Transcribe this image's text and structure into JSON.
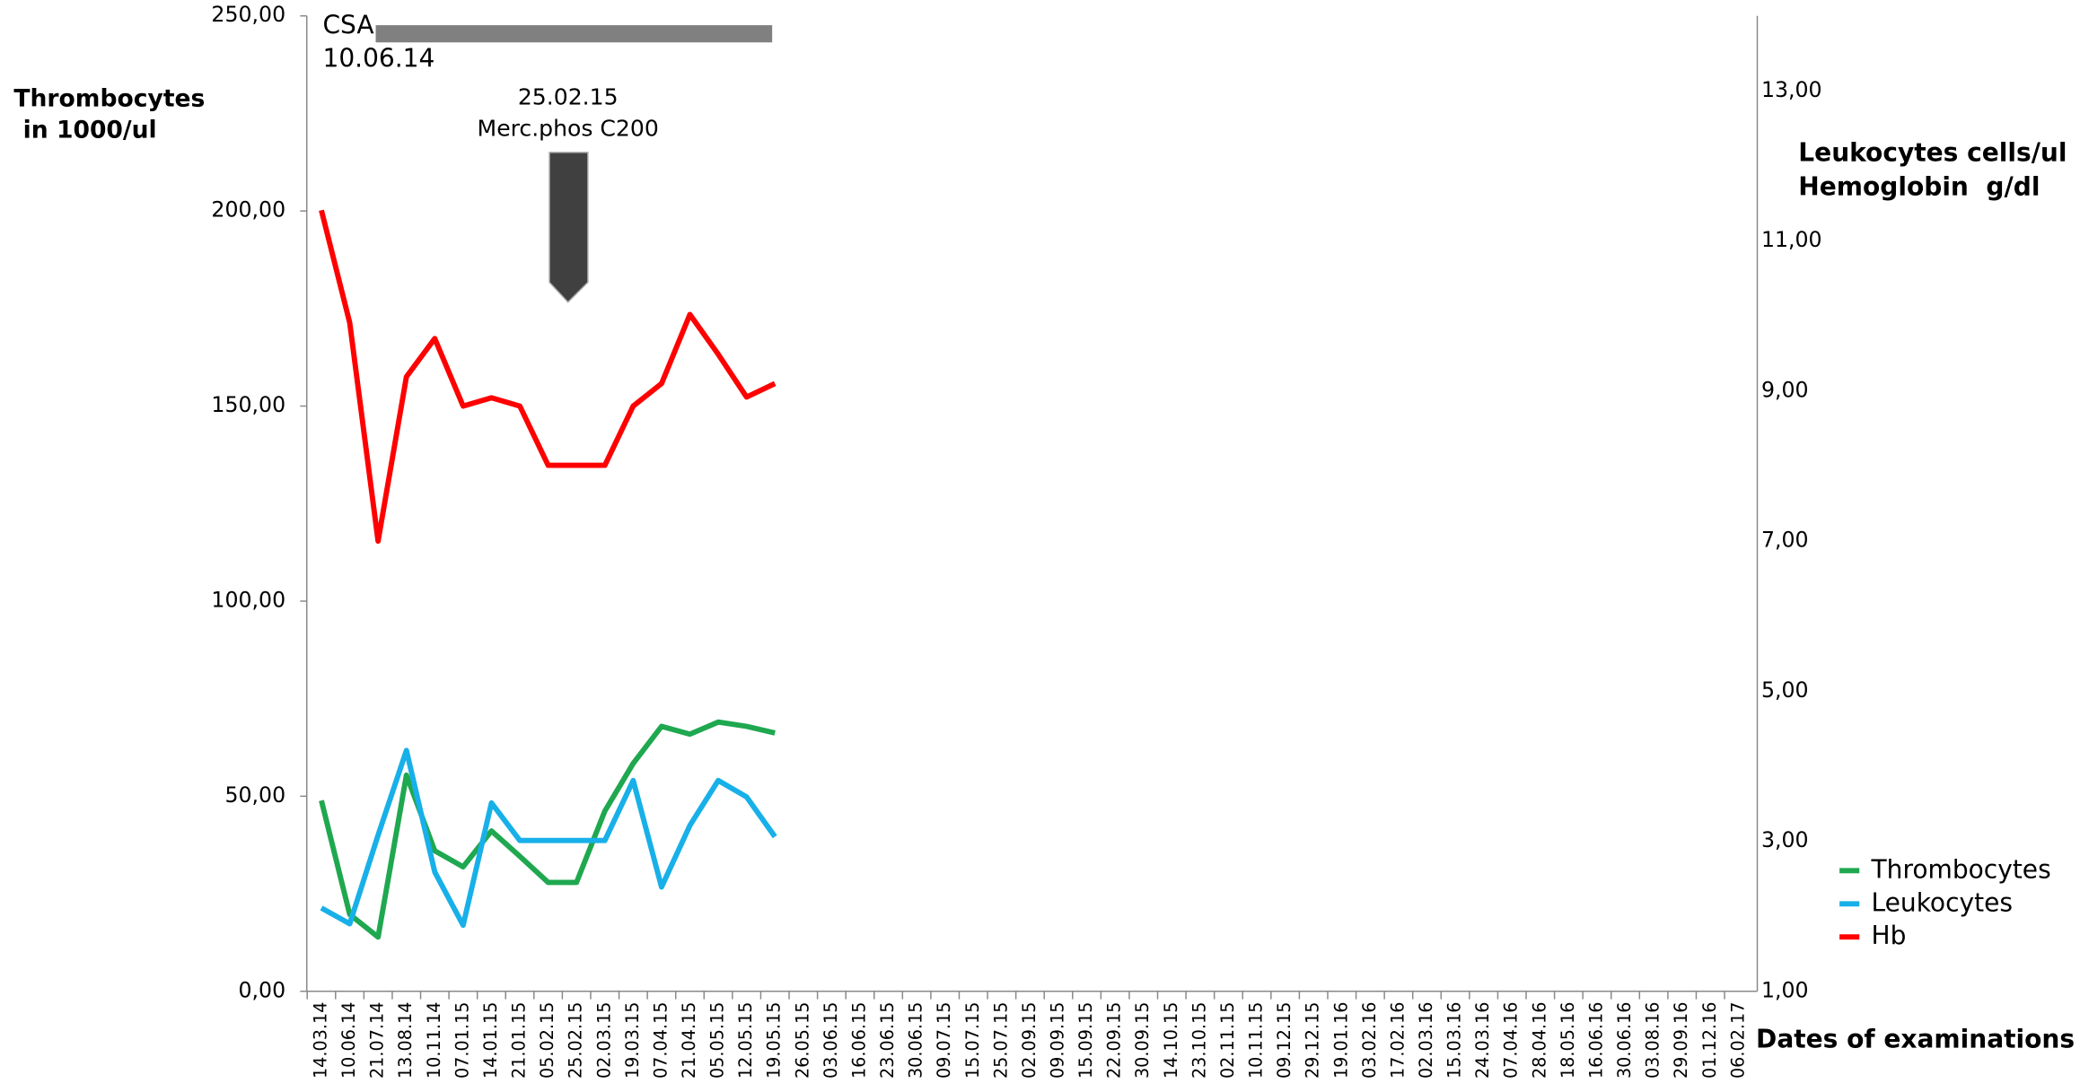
{
  "chart_data": {
    "type": "line",
    "annotations": [
      "CSA",
      "10.06.14",
      "25.02.15",
      "Merc.phos C200"
    ],
    "y_label": [
      "Thrombocytes",
      "in 1000/ul"
    ],
    "y2_label": [
      "Leukocytes cells/ul",
      "Hemoglobin  g/dl"
    ],
    "x_label": "Dates of examinations",
    "categories": [
      "14.03.14",
      "10.06.14",
      "21.07.14",
      "13.08.14",
      "10.11.14",
      "07.01.15",
      "14.01.15",
      "21.01.15",
      "05.02.15",
      "25.02.15",
      "02.03.15",
      "19.03.15",
      "07.04.15",
      "21.04.15",
      "05.05.15",
      "12.05.15",
      "19.05.15",
      "26.05.15",
      "03.06.15",
      "16.06.15",
      "23.06.15",
      "30.06.15",
      "09.07.15",
      "15.07.15",
      "25.07.15",
      "02.09.15",
      "09.09.15",
      "15.09.15",
      "22.09.15",
      "30.09.15",
      "14.10.15",
      "23.10.15",
      "02.11.15",
      "10.11.15",
      "09.12.15",
      "29.12.15",
      "19.01.16",
      "03.02.16",
      "17.02.16",
      "02.03.16",
      "15.03.16",
      "24.03.16",
      "07.04.16",
      "28.04.16",
      "18.05.16",
      "16.06.16",
      "30.06.16",
      "03.08.16",
      "29.09.16",
      "01.12.16",
      "06.02.17"
    ],
    "series": [
      {
        "name": "Thrombocytes",
        "color": "#1fa84f",
        "axis": "y",
        "values": [
          48.9,
          19.7,
          13.9,
          55.4,
          36.0,
          31.9,
          41.1,
          34.6,
          27.9,
          27.9,
          46.2,
          58.4,
          67.9,
          65.9,
          69.0,
          67.9,
          66.2,
          null,
          null,
          null,
          null,
          null,
          null,
          null,
          null,
          null,
          null,
          null,
          null,
          null,
          null,
          null,
          null,
          null,
          null,
          null,
          null,
          null,
          null,
          null,
          null,
          null,
          null,
          null,
          null,
          null,
          null,
          null,
          null,
          null,
          null
        ]
      },
      {
        "name": "Leukocytes",
        "color": "#18b0e8",
        "axis": "y2",
        "values": [
          2.11,
          1.9,
          3.08,
          4.21,
          2.59,
          1.88,
          3.51,
          3.01,
          3.01,
          3.01,
          3.01,
          3.81,
          2.39,
          3.21,
          3.81,
          3.59,
          3.06,
          null,
          null,
          null,
          null,
          null,
          null,
          null,
          null,
          null,
          null,
          null,
          null,
          null,
          null,
          null,
          null,
          null,
          null,
          null,
          null,
          null,
          null,
          null,
          null,
          null,
          null,
          null,
          null,
          null,
          null,
          null,
          null,
          null,
          null
        ]
      },
      {
        "name": "Hb",
        "color": "#ff0000",
        "axis": "y2",
        "values": [
          11.41,
          9.91,
          7.0,
          9.19,
          9.7,
          8.8,
          8.91,
          8.8,
          8.01,
          8.01,
          8.01,
          8.8,
          9.1,
          10.02,
          9.49,
          8.92,
          9.1,
          null,
          null,
          null,
          null,
          null,
          null,
          null,
          null,
          null,
          null,
          null,
          null,
          null,
          null,
          null,
          null,
          null,
          null,
          null,
          null,
          null,
          null,
          null,
          null,
          null,
          null,
          null,
          null,
          null,
          null,
          null,
          null,
          null,
          null
        ]
      }
    ],
    "ylim": [
      0,
      250
    ],
    "yticks": [
      {
        "value": 0,
        "label": "0,00"
      },
      {
        "value": 50,
        "label": "50,00"
      },
      {
        "value": 100,
        "label": "100,00"
      },
      {
        "value": 150,
        "label": "150,00"
      },
      {
        "value": 200,
        "label": "200,00"
      },
      {
        "value": 250,
        "label": "250,00"
      }
    ],
    "y2lim": [
      1,
      14
    ],
    "y2ticks": [
      {
        "value": 1,
        "label": "1,00"
      },
      {
        "value": 3,
        "label": "3,00"
      },
      {
        "value": 5,
        "label": "5,00"
      },
      {
        "value": 7,
        "label": "7,00"
      },
      {
        "value": 9,
        "label": "9,00"
      },
      {
        "value": 11,
        "label": "11,00"
      },
      {
        "value": 13,
        "label": "13,00"
      }
    ],
    "grid": false,
    "legend": "right"
  }
}
